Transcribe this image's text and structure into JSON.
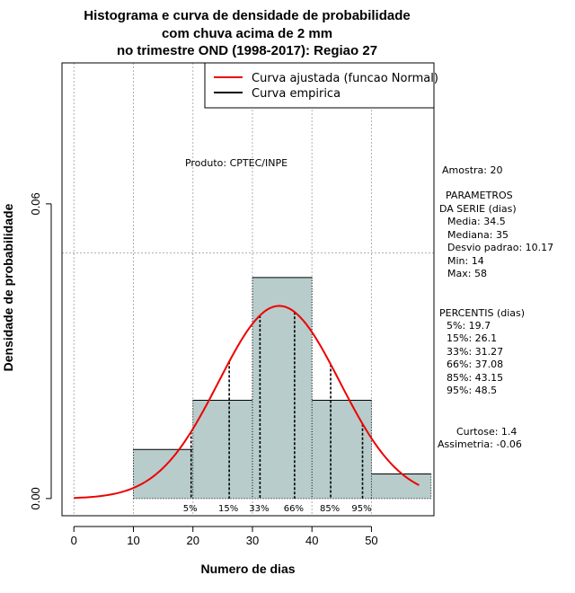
{
  "chart_data": {
    "type": "histogram",
    "title_lines": [
      "Histograma e curva de densidade de probabilidade",
      "com chuva acima de 2 mm",
      "no trimestre OND (1998-2017): Regiao 27"
    ],
    "xlabel": "Numero de dias",
    "ylabel": "Densidade de probabilidade",
    "xlim": [
      -2,
      60.5
    ],
    "ylim": [
      -0.0035,
      0.0887
    ],
    "x_ticks": [
      0,
      10,
      20,
      30,
      40,
      50
    ],
    "y_ticks": [
      {
        "value": 0.0,
        "label": "0.00"
      },
      {
        "value": 0.06,
        "label": "0.06"
      }
    ],
    "bins": [
      {
        "start": 10,
        "end": 20,
        "density": 0.01
      },
      {
        "start": 20,
        "end": 30,
        "density": 0.02
      },
      {
        "start": 30,
        "end": 40,
        "density": 0.045
      },
      {
        "start": 40,
        "end": 50,
        "density": 0.02
      },
      {
        "start": 50,
        "end": 60,
        "density": 0.005
      }
    ],
    "hline_y": 0.05,
    "normal_fit": {
      "mean": 34.5,
      "sd": 10.17,
      "x_from": 0,
      "x_to": 58
    },
    "percentiles": [
      {
        "label": "5%",
        "value": 19.7
      },
      {
        "label": "15%",
        "value": 26.1
      },
      {
        "label": "33%",
        "value": 31.27
      },
      {
        "label": "66%",
        "value": 37.08
      },
      {
        "label": "85%",
        "value": 43.15
      },
      {
        "label": "95%",
        "value": 48.5
      }
    ],
    "legend": [
      {
        "label": "Curva ajustada (funcao Normal)",
        "color": "#ee0000"
      },
      {
        "label": "Curva empirica",
        "color": "#000000"
      }
    ],
    "credit": "Produto: CPTEC/INPE",
    "colors": {
      "bar_fill": "#b7cccb",
      "curve": "#ee0000",
      "grid": "#b0b0b0"
    }
  },
  "side_panel": {
    "sample": "Amostra: 20",
    "params_title_1": "PARAMETROS",
    "params_title_2": "DA SERIE (dias)",
    "media": "Media: 34.5",
    "mediana": "Mediana: 35",
    "desvio": "Desvio padrao: 10.17",
    "min": "Min: 14",
    "max": "Max: 58",
    "percentis_title": "PERCENTIS (dias)",
    "p5": "5%: 19.7",
    "p15": "15%: 26.1",
    "p33": "33%: 31.27",
    "p66": "66%: 37.08",
    "p85": "85%: 43.15",
    "p95": "95%: 48.5",
    "curtose": "Curtose: 1.4",
    "assimetria": "Assimetria: -0.06"
  }
}
